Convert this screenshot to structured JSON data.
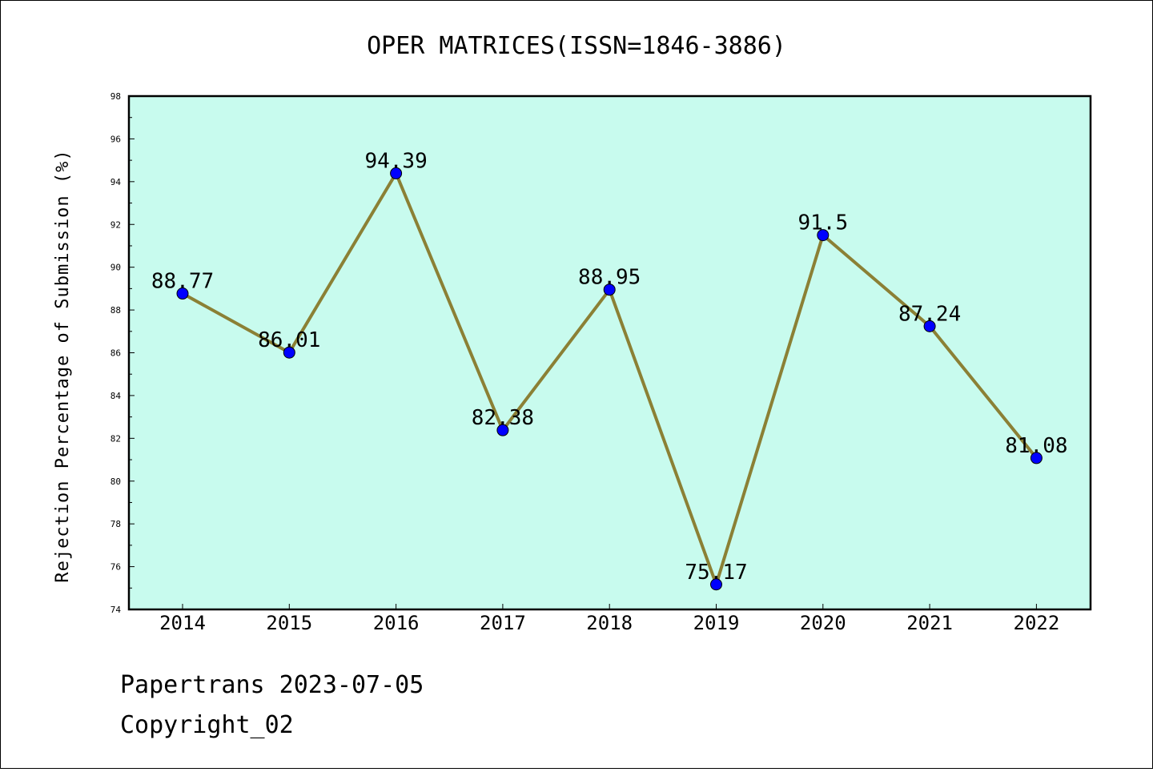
{
  "chart_data": {
    "type": "line",
    "title": "OPER MATRICES(ISSN=1846-3886)",
    "xlabel": "",
    "ylabel": "Rejection Percentage of Submission (%)",
    "categories": [
      "2014",
      "2015",
      "2016",
      "2017",
      "2018",
      "2019",
      "2020",
      "2021",
      "2022"
    ],
    "series": [
      {
        "values": [
          88.77,
          86.01,
          94.39,
          82.38,
          88.95,
          75.17,
          91.5,
          87.24,
          81.08
        ],
        "labels": [
          "88.77",
          "86.01",
          "94.39",
          "82.38",
          "88.95",
          "75.17",
          "91.5",
          "87.24",
          "81.08"
        ],
        "line_color": "#8b8035",
        "marker_color": "#0000ff"
      }
    ],
    "ylim": [
      74,
      98
    ],
    "yticks": [
      "74",
      "76",
      "78",
      "80",
      "82",
      "84",
      "86",
      "88",
      "90",
      "92",
      "94",
      "96",
      "98"
    ],
    "plot_background": "#c8fbee",
    "grid": false,
    "legend": "none"
  },
  "footer": {
    "line1": "Papertrans 2023-07-05",
    "line2": "Copyright_02"
  }
}
